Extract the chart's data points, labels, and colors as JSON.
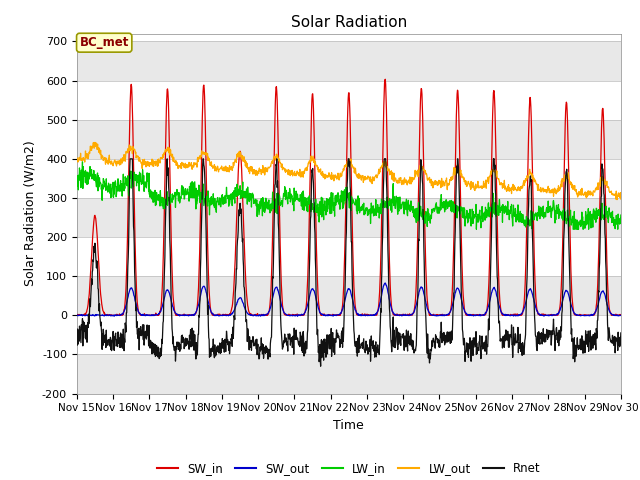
{
  "title": "Solar Radiation",
  "ylabel": "Solar Radiation (W/m2)",
  "xlabel": "Time",
  "ylim": [
    -200,
    720
  ],
  "yticks": [
    -200,
    -100,
    0,
    100,
    200,
    300,
    400,
    500,
    600,
    700
  ],
  "num_days": 15,
  "annotation_text": "BC_met",
  "annotation_bg": "#ffffcc",
  "annotation_border": "#999900",
  "fig_bg": "#ffffff",
  "plot_bg": "#ffffff",
  "series": {
    "SW_in": {
      "color": "#dd0000",
      "label": "SW_in"
    },
    "SW_out": {
      "color": "#0000cc",
      "label": "SW_out"
    },
    "LW_in": {
      "color": "#00cc00",
      "label": "LW_in"
    },
    "LW_out": {
      "color": "#ffaa00",
      "label": "LW_out"
    },
    "Rnet": {
      "color": "#111111",
      "label": "Rnet"
    }
  },
  "title_fontsize": 11,
  "axis_label_fontsize": 9,
  "tick_fontsize": 8
}
